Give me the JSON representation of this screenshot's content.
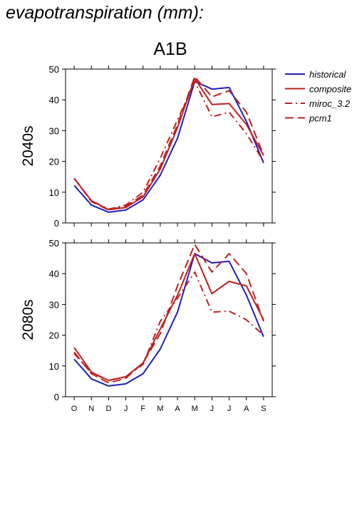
{
  "header": {
    "title": "evapotranspiration (mm):"
  },
  "chart_data": {
    "type": "line",
    "scenario": "A1B",
    "categories": [
      "O",
      "N",
      "D",
      "J",
      "F",
      "M",
      "A",
      "M",
      "J",
      "J",
      "A",
      "S"
    ],
    "ylim": [
      0,
      50
    ],
    "yticks": [
      0,
      10,
      20,
      30,
      40,
      50
    ],
    "legend": [
      {
        "name": "historical",
        "color": "#1f1fbf",
        "dash": "solid"
      },
      {
        "name": "composite",
        "color": "#bf1f1f",
        "dash": "solid"
      },
      {
        "name": "miroc_3.2",
        "color": "#bf1f1f",
        "dash": "dashdot"
      },
      {
        "name": "pcm1",
        "color": "#bf1f1f",
        "dash": "dash"
      }
    ],
    "panels": [
      {
        "label": "2040s",
        "series": [
          {
            "name": "historical",
            "values": [
              12.2,
              5.8,
              3.5,
              4.2,
              7.5,
              15.5,
              27.5,
              46.0,
              43.5,
              44.0,
              33.0,
              19.5
            ]
          },
          {
            "name": "composite",
            "values": [
              14.5,
              7.2,
              4.3,
              5.0,
              8.5,
              17.5,
              31.0,
              47.0,
              38.5,
              38.8,
              32.0,
              22.0
            ]
          },
          {
            "name": "miroc_3.2",
            "values": [
              14.5,
              7.2,
              4.5,
              5.8,
              10.0,
              21.0,
              33.5,
              46.0,
              34.5,
              36.0,
              29.0,
              20.0
            ]
          },
          {
            "name": "pcm1",
            "values": [
              14.5,
              7.0,
              4.2,
              5.5,
              9.0,
              18.5,
              32.0,
              47.5,
              41.0,
              43.0,
              36.0,
              22.0
            ]
          }
        ]
      },
      {
        "label": "2080s",
        "series": [
          {
            "name": "historical",
            "values": [
              12.2,
              5.8,
              3.5,
              4.2,
              7.5,
              15.5,
              27.5,
              46.5,
              43.5,
              44.0,
              33.0,
              19.5
            ]
          },
          {
            "name": "composite",
            "values": [
              16.0,
              8.0,
              5.3,
              6.5,
              11.0,
              22.0,
              33.0,
              46.5,
              33.5,
              37.5,
              36.0,
              25.0
            ]
          },
          {
            "name": "miroc_3.2",
            "values": [
              14.0,
              7.8,
              5.3,
              6.5,
              10.5,
              24.5,
              32.0,
              40.5,
              27.5,
              27.8,
              25.0,
              20.0
            ]
          },
          {
            "name": "pcm1",
            "values": [
              14.5,
              7.5,
              4.5,
              6.0,
              11.0,
              20.5,
              36.0,
              49.5,
              40.5,
              46.5,
              40.0,
              24.5
            ]
          }
        ]
      }
    ]
  }
}
